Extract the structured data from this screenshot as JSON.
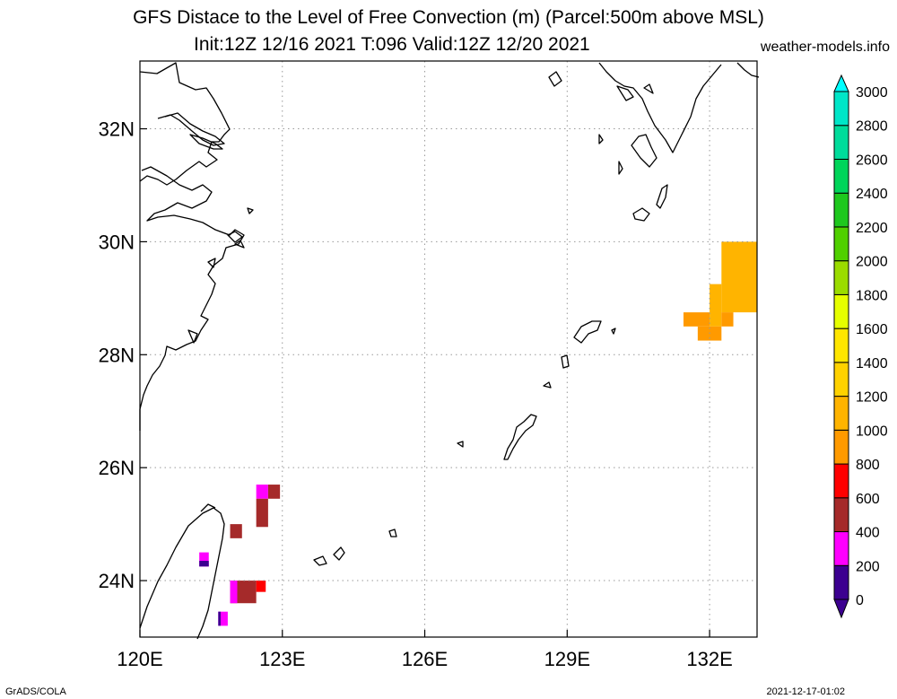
{
  "title_line1": "GFS Distace to the Level of Free Convection (m) (Parcel:500m above MSL)",
  "title_line2": "Init:12Z 12/16 2021 T:096 Valid:12Z 12/20 2021",
  "site": "weather-models.info",
  "footer_left": "GrADS/COLA",
  "footer_right": "2021-12-17-01:02",
  "map": {
    "lon_range": [
      120,
      133
    ],
    "lat_range": [
      23,
      33.2
    ],
    "lon_ticks": [
      {
        "lon": 120,
        "label": "120E"
      },
      {
        "lon": 123,
        "label": "123E"
      },
      {
        "lon": 126,
        "label": "126E"
      },
      {
        "lon": 129,
        "label": "129E"
      },
      {
        "lon": 132,
        "label": "132E"
      }
    ],
    "lat_ticks": [
      {
        "lat": 24,
        "label": "24N"
      },
      {
        "lat": 26,
        "label": "26N"
      },
      {
        "lat": 28,
        "label": "28N"
      },
      {
        "lat": 30,
        "label": "30N"
      },
      {
        "lat": 32,
        "label": "32N"
      }
    ],
    "grid": "dotted"
  },
  "colorbar": {
    "levels": [
      0,
      200,
      400,
      600,
      800,
      1000,
      1200,
      1400,
      1600,
      1800,
      2000,
      2200,
      2400,
      2600,
      2800,
      3000
    ],
    "colors": [
      "#3c0090",
      "#ff00ff",
      "#a52a2a",
      "#ff0000",
      "#ff9a00",
      "#ffb400",
      "#ffd200",
      "#ffe600",
      "#e6ff00",
      "#9bdc00",
      "#50d000",
      "#1ec81e",
      "#00d55a",
      "#00dc9b",
      "#00e6c8",
      "#00ffff"
    ],
    "under_color": "#3c0090",
    "over_color": "#00ffff"
  },
  "field_cells": [
    {
      "lon0": 122.45,
      "lon1": 122.7,
      "lat0": 25.45,
      "lat1": 25.7,
      "color": "#ff00ff"
    },
    {
      "lon0": 122.7,
      "lon1": 122.95,
      "lat0": 25.45,
      "lat1": 25.7,
      "color": "#a52a2a"
    },
    {
      "lon0": 122.45,
      "lon1": 122.7,
      "lat0": 24.95,
      "lat1": 25.45,
      "color": "#a52a2a"
    },
    {
      "lon0": 121.9,
      "lon1": 122.15,
      "lat0": 24.75,
      "lat1": 25.0,
      "color": "#a52a2a"
    },
    {
      "lon0": 121.25,
      "lon1": 121.45,
      "lat0": 24.25,
      "lat1": 24.5,
      "color": "#ff00ff"
    },
    {
      "lon0": 121.25,
      "lon1": 121.45,
      "lat0": 24.25,
      "lat1": 24.35,
      "color": "#3c0090"
    },
    {
      "lon0": 121.9,
      "lon1": 122.45,
      "lat0": 23.6,
      "lat1": 24.0,
      "color": "#a52a2a"
    },
    {
      "lon0": 122.45,
      "lon1": 122.65,
      "lat0": 23.8,
      "lat1": 24.0,
      "color": "#ff0000"
    },
    {
      "lon0": 121.9,
      "lon1": 122.05,
      "lat0": 23.6,
      "lat1": 24.0,
      "color": "#ff00ff"
    },
    {
      "lon0": 121.65,
      "lon1": 121.85,
      "lat0": 23.2,
      "lat1": 23.45,
      "color": "#ff00ff"
    },
    {
      "lon0": 121.65,
      "lon1": 121.7,
      "lat0": 23.2,
      "lat1": 23.45,
      "color": "#3c0090"
    },
    {
      "lon0": 132.25,
      "lon1": 133.0,
      "lat0": 28.75,
      "lat1": 30.0,
      "color": "#ffb400"
    },
    {
      "lon0": 132.0,
      "lon1": 132.25,
      "lat0": 28.5,
      "lat1": 29.25,
      "color": "#ffb400"
    },
    {
      "lon0": 131.45,
      "lon1": 132.0,
      "lat0": 28.5,
      "lat1": 28.75,
      "color": "#ff9a00"
    },
    {
      "lon0": 131.75,
      "lon1": 132.25,
      "lat0": 28.25,
      "lat1": 28.5,
      "color": "#ff9a00"
    },
    {
      "lon0": 132.25,
      "lon1": 132.5,
      "lat0": 28.5,
      "lat1": 28.75,
      "color": "#ff9a00"
    }
  ]
}
